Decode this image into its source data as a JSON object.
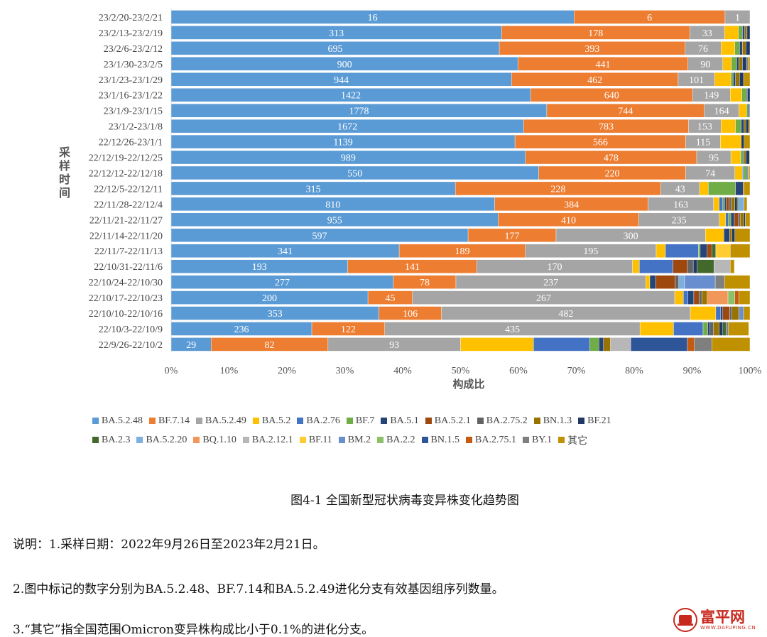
{
  "chart_data": {
    "type": "bar",
    "orientation": "horizontal",
    "stacked": "percent",
    "ylabel": "采样时间",
    "xlabel": "构成比",
    "xlim": [
      0,
      100
    ],
    "x_ticks": [
      "0%",
      "10%",
      "20%",
      "30%",
      "40%",
      "50%",
      "60%",
      "70%",
      "80%",
      "90%",
      "100%"
    ],
    "categories": [
      "23/2/20-23/2/21",
      "23/2/13-23/2/19",
      "23/2/6-23/2/12",
      "23/1/30-23/2/5",
      "23/1/23-23/1/29",
      "23/1/16-23/1/22",
      "23/1/9-23/1/15",
      "23/1/2-23/1/8",
      "22/12/26-23/1/1",
      "22/12/19-22/12/25",
      "22/12/12-22/12/18",
      "22/12/5-22/12/11",
      "22/11/28-22/12/4",
      "22/11/21-22/11/27",
      "22/11/14-22/11/20",
      "22/11/7-22/11/13",
      "22/10/31-22/11/6",
      "22/10/24-22/10/30",
      "22/10/17-22/10/23",
      "22/10/10-22/10/16",
      "22/10/3-22/10/9",
      "22/9/26-22/10/2"
    ],
    "legend": [
      {
        "name": "BA.5.2.48",
        "color": "#5b9bd5"
      },
      {
        "name": "BF.7.14",
        "color": "#ed7d31"
      },
      {
        "name": "BA.5.2.49",
        "color": "#a5a5a5"
      },
      {
        "name": "BA.5.2",
        "color": "#ffc000"
      },
      {
        "name": "BA.2.76",
        "color": "#4472c4"
      },
      {
        "name": "BF.7",
        "color": "#70ad47"
      },
      {
        "name": "BA.5.1",
        "color": "#264478"
      },
      {
        "name": "BA.5.2.1",
        "color": "#9e480e"
      },
      {
        "name": "BA.2.75.2",
        "color": "#636363"
      },
      {
        "name": "BN.1.3",
        "color": "#997300"
      },
      {
        "name": "BF.21",
        "color": "#1f3864"
      },
      {
        "name": "BA.2.3",
        "color": "#43682b"
      },
      {
        "name": "BA.5.2.20",
        "color": "#7cafdd"
      },
      {
        "name": "BQ.1.10",
        "color": "#f1975a"
      },
      {
        "name": "BA.2.12.1",
        "color": "#b7b7b7"
      },
      {
        "name": "BF.11",
        "color": "#ffcd33"
      },
      {
        "name": "BM.2",
        "color": "#698ed0"
      },
      {
        "name": "BA.2.2",
        "color": "#8cc168"
      },
      {
        "name": "BN.1.5",
        "color": "#2e5597"
      },
      {
        "name": "BA.2.75.1",
        "color": "#c55a11"
      },
      {
        "name": "BY.1",
        "color": "#7f7f7f"
      },
      {
        "name": "其它",
        "color": "#bf9000"
      }
    ],
    "segments_percent": [
      [
        69.6,
        26.1,
        4.3,
        0,
        0,
        0,
        0,
        0,
        0,
        0,
        0,
        0,
        0,
        0,
        0,
        0,
        0,
        0,
        0,
        0,
        0,
        0
      ],
      [
        57.1,
        32.5,
        6.0,
        2.4,
        0,
        0.7,
        0.4,
        0,
        0,
        0.4,
        0.5,
        0,
        0,
        0,
        0,
        0,
        0,
        0,
        0,
        0,
        0,
        0
      ],
      [
        56.7,
        32.1,
        6.2,
        2.4,
        0,
        0.8,
        0.5,
        0,
        0,
        0.6,
        0.7,
        0,
        0,
        0,
        0,
        0,
        0,
        0,
        0,
        0,
        0,
        0
      ],
      [
        59.9,
        29.4,
        6.0,
        1.5,
        0,
        0.9,
        0.4,
        0,
        0,
        0.6,
        0.7,
        0,
        0,
        0,
        0,
        0,
        0,
        0,
        0,
        0,
        0.3,
        0.3
      ],
      [
        58.8,
        28.8,
        6.3,
        2.8,
        0,
        0.4,
        0.4,
        0,
        0,
        0.7,
        0.7,
        0,
        0,
        0,
        0,
        0,
        0,
        0,
        0,
        0,
        0,
        1.1
      ],
      [
        62.1,
        28.0,
        6.5,
        2.0,
        0,
        0.8,
        0.2,
        0,
        0,
        0,
        0.4,
        0,
        0,
        0,
        0,
        0,
        0,
        0,
        0,
        0,
        0,
        0
      ],
      [
        64.9,
        27.2,
        6.0,
        1.3,
        0,
        0.3,
        0.2,
        0,
        0,
        0,
        0.1,
        0,
        0,
        0,
        0,
        0,
        0,
        0,
        0,
        0,
        0,
        0
      ],
      [
        60.9,
        28.5,
        5.6,
        2.5,
        0,
        1.0,
        0.5,
        0,
        0,
        0.3,
        0.5,
        0,
        0,
        0,
        0,
        0,
        0,
        0,
        0,
        0,
        0,
        0.2
      ],
      [
        59.4,
        29.5,
        6.0,
        3.6,
        0,
        0,
        0,
        0,
        0,
        0,
        0.5,
        0,
        0,
        0,
        0,
        0,
        0,
        0,
        0,
        0,
        0,
        1.0
      ],
      [
        61.2,
        29.6,
        5.9,
        1.7,
        0,
        0.4,
        0.2,
        0,
        0,
        0.3,
        0.6,
        0,
        0,
        0,
        0,
        0,
        0,
        0,
        0,
        0,
        0,
        0.1
      ],
      [
        63.5,
        25.4,
        8.5,
        1.3,
        0.2,
        0.5,
        0.2,
        0,
        0,
        0.1,
        0.1,
        0,
        0,
        0,
        0,
        0,
        0,
        0,
        0,
        0,
        0,
        0.2
      ],
      [
        49.1,
        35.5,
        6.7,
        1.5,
        0,
        4.7,
        1.3,
        0,
        0,
        0.2,
        0,
        0,
        0,
        0,
        0,
        0,
        0,
        0,
        0,
        0,
        0,
        1.0
      ],
      [
        55.9,
        26.5,
        11.3,
        1.0,
        0.6,
        0.3,
        0.3,
        0.5,
        0.4,
        0.6,
        0.4,
        0.2,
        1.0,
        0,
        0,
        0,
        0,
        0,
        0,
        0,
        0,
        0.5
      ],
      [
        56.5,
        24.3,
        13.9,
        1.1,
        0.5,
        0.4,
        0.6,
        0.7,
        0.3,
        0.6,
        0.3,
        0,
        0,
        0,
        0,
        0,
        0,
        0,
        0,
        0,
        0,
        0.8
      ],
      [
        51.3,
        15.2,
        25.8,
        3.2,
        0,
        0,
        1.0,
        0,
        0,
        0.4,
        0.5,
        0,
        0,
        0,
        0,
        0,
        0,
        0,
        0,
        0,
        0,
        2.6
      ],
      [
        39.4,
        21.8,
        22.6,
        1.6,
        5.7,
        0.3,
        1.2,
        0.8,
        0,
        0,
        0,
        0.7,
        0,
        0,
        0,
        2.5,
        0,
        0,
        0,
        0,
        0,
        3.4
      ],
      [
        30.5,
        22.3,
        26.9,
        1.2,
        5.8,
        0,
        0,
        2.5,
        1.0,
        0,
        0.7,
        2.9,
        0,
        0,
        2.8,
        0,
        0,
        0,
        0,
        0,
        0,
        0.7
      ],
      [
        38.4,
        10.8,
        32.8,
        0.7,
        0,
        0,
        1.0,
        3.4,
        0.6,
        0,
        0,
        0,
        1.0,
        0,
        0,
        0,
        5.3,
        0,
        0,
        0,
        1.6,
        4.4
      ],
      [
        34.0,
        7.7,
        45.3,
        1.5,
        0.8,
        0,
        1.0,
        0.9,
        0.5,
        0.9,
        0,
        0,
        0,
        3.6,
        0,
        0,
        0,
        1.2,
        0,
        0.7,
        0,
        1.9
      ],
      [
        35.9,
        10.8,
        43.0,
        4.4,
        0.8,
        0,
        0.4,
        1.2,
        0.4,
        1.2,
        0,
        0,
        0,
        0,
        0,
        0,
        0.8,
        0,
        0,
        0,
        0,
        1.1
      ],
      [
        24.3,
        12.6,
        44.1,
        5.8,
        5.1,
        0.8,
        0.4,
        0,
        0.6,
        1.0,
        0.6,
        0.6,
        0,
        0,
        0,
        0,
        0,
        0,
        0,
        0,
        0.4,
        3.5
      ],
      [
        6.9,
        20.2,
        22.9,
        12.6,
        9.7,
        1.6,
        0.8,
        0,
        0,
        1.2,
        0,
        0,
        0,
        0,
        3.5,
        0,
        0,
        0,
        9.8,
        1.2,
        3.0,
        6.6
      ]
    ],
    "counts": [
      [
        16,
        6,
        1
      ],
      [
        313,
        178,
        33
      ],
      [
        695,
        393,
        76
      ],
      [
        900,
        441,
        90
      ],
      [
        944,
        462,
        101
      ],
      [
        1422,
        640,
        149
      ],
      [
        1778,
        744,
        164
      ],
      [
        1672,
        783,
        153
      ],
      [
        1139,
        566,
        115
      ],
      [
        989,
        478,
        95
      ],
      [
        550,
        220,
        74
      ],
      [
        315,
        228,
        43
      ],
      [
        810,
        384,
        163
      ],
      [
        955,
        410,
        235
      ],
      [
        597,
        177,
        300
      ],
      [
        341,
        189,
        195
      ],
      [
        193,
        141,
        170
      ],
      [
        277,
        78,
        237
      ],
      [
        200,
        45,
        267
      ],
      [
        353,
        106,
        482
      ],
      [
        236,
        122,
        435
      ],
      [
        29,
        82,
        93
      ]
    ]
  },
  "caption": "图4-1 全国新型冠状病毒变异株变化趋势图",
  "notes": {
    "n1": "说明：1.采样日期：2022年9月26日至2023年2月21日。",
    "n2": "2.图中标记的数字分别为BA.5.2.48、BF.7.14和BA.5.2.49进化分支有效基因组序列数量。",
    "n3": "3.“其它”指全国范围Omicron变异株构成比小于0.1%的进化分支。"
  },
  "watermark": {
    "name": "富平网",
    "url": "WWW.DAFUPING.CN"
  }
}
